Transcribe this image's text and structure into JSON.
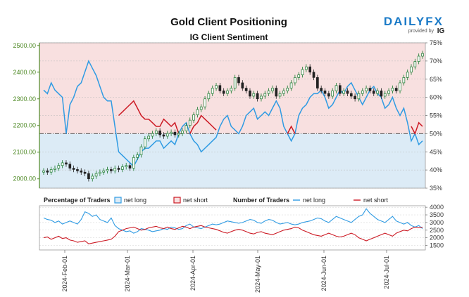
{
  "title": "Gold Client Positioning",
  "subtitle": "IG Client Sentiment",
  "brand": {
    "name": "DAILYFX",
    "provided_by": "provided by",
    "ig": "IG",
    "color": "#1a7ac7",
    "ig_color": "#e21f26"
  },
  "colors": {
    "long": "#2f9be3",
    "short": "#cc1a24",
    "price_axis": "#4f8a26",
    "long_zone": "#dcebf6",
    "short_zone": "#f8e0e0",
    "candle_up": "#1a7a2e",
    "candle_down": "#222222"
  },
  "legend": {
    "pct_title": "Percentage of Traders",
    "pct_long": "net long",
    "pct_short": "net short",
    "num_title": "Number of Traders",
    "num_long": "net long",
    "num_short": "net short"
  },
  "chart_data": [
    {
      "type": "candlestick",
      "title": "Gold Client Positioning",
      "subtitle": "IG Client Sentiment",
      "x_dates": [
        "2024-Feb-01",
        "2024-Mar-01",
        "2024-Apr-01",
        "2024-May-01",
        "2024-Jun-01",
        "2024-Jul-01"
      ],
      "y_left_ticks": [
        "2000.00",
        "2100.00",
        "2200.00",
        "2300.00",
        "2400.00",
        "2500.00"
      ],
      "y_left_range": [
        1965,
        2510
      ],
      "y_right_ticks": [
        "35%",
        "40%",
        "45%",
        "50%",
        "55%",
        "60%",
        "65%",
        "70%",
        "75%"
      ],
      "y_right_range": [
        35,
        75
      ],
      "price_close": [
        2030,
        2025,
        2035,
        2040,
        2050,
        2060,
        2055,
        2040,
        2035,
        2030,
        2025,
        2020,
        2000,
        2010,
        2020,
        2025,
        2030,
        2035,
        2030,
        2040,
        2035,
        2045,
        2050,
        2040,
        2080,
        2090,
        2120,
        2150,
        2160,
        2170,
        2180,
        2165,
        2160,
        2170,
        2175,
        2165,
        2170,
        2180,
        2200,
        2220,
        2240,
        2260,
        2270,
        2300,
        2320,
        2340,
        2350,
        2330,
        2320,
        2330,
        2340,
        2380,
        2360,
        2340,
        2330,
        2310,
        2320,
        2300,
        2310,
        2320,
        2330,
        2340,
        2310,
        2320,
        2330,
        2340,
        2360,
        2380,
        2390,
        2410,
        2420,
        2400,
        2380,
        2340,
        2330,
        2320,
        2310,
        2330,
        2350,
        2320,
        2330,
        2320,
        2310,
        2300,
        2320,
        2330,
        2340,
        2330,
        2320,
        2330,
        2310,
        2320,
        2330,
        2340,
        2330,
        2360,
        2380,
        2400,
        2420,
        2440,
        2460,
        2470
      ],
      "long_pct": [
        62,
        61,
        64,
        62,
        61,
        60,
        50,
        58,
        60,
        63,
        64,
        67,
        70,
        68,
        66,
        63,
        60,
        59,
        59,
        52,
        45,
        44,
        43,
        42,
        41,
        43,
        45,
        46,
        46,
        47,
        48,
        48,
        46,
        47,
        48,
        47,
        50,
        52,
        53,
        50,
        48,
        47,
        45,
        46,
        47,
        48,
        49,
        52,
        54,
        55,
        52,
        51,
        50,
        52,
        55,
        56,
        57,
        54,
        55,
        56,
        55,
        57,
        59,
        57,
        52,
        50,
        48,
        50,
        55,
        57,
        58,
        60,
        61,
        61,
        62,
        60,
        57,
        58,
        60,
        62,
        61,
        63,
        64,
        62,
        60,
        58,
        60,
        62,
        63,
        61,
        60,
        57,
        58,
        60,
        57,
        55,
        57,
        53,
        48,
        50,
        47,
        48
      ],
      "short_pct": [
        38,
        39,
        36,
        38,
        39,
        40,
        50,
        42,
        40,
        37,
        36,
        33,
        30,
        32,
        34,
        37,
        40,
        41,
        41,
        48,
        55,
        56,
        57,
        58,
        59,
        57,
        55,
        54,
        54,
        53,
        52,
        52,
        54,
        53,
        52,
        53,
        50,
        48,
        47,
        50,
        52,
        53,
        55,
        54,
        53,
        52,
        51,
        48,
        46,
        45,
        48,
        49,
        50,
        48,
        45,
        44,
        43,
        46,
        45,
        44,
        45,
        43,
        41,
        43,
        48,
        50,
        52,
        50,
        45,
        43,
        42,
        40,
        39,
        39,
        38,
        40,
        43,
        42,
        40,
        38,
        39,
        37,
        36,
        38,
        40,
        42,
        40,
        38,
        37,
        39,
        40,
        43,
        42,
        40,
        43,
        45,
        43,
        47,
        52,
        50,
        53,
        52
      ]
    },
    {
      "type": "line",
      "title": "Number of Traders",
      "y_right_ticks": [
        "1500",
        "2000",
        "2500",
        "3000",
        "3500",
        "4000"
      ],
      "y_right_range": [
        1200,
        4100
      ],
      "long_count": [
        3300,
        3200,
        3150,
        3000,
        3100,
        2900,
        3000,
        3100,
        3000,
        2900,
        3200,
        3700,
        3600,
        3400,
        3500,
        3200,
        3100,
        3000,
        3300,
        2800,
        2600,
        2500,
        2400,
        2450,
        2300,
        2400,
        2600,
        2550,
        2500,
        2400,
        2450,
        2500,
        2600,
        2550,
        2700,
        2650,
        2550,
        2600,
        2800,
        2900,
        2700,
        2650,
        2600,
        2700,
        2800,
        2900,
        2850,
        2900,
        3000,
        3100,
        3050,
        3000,
        2950,
        3000,
        3100,
        3200,
        3150,
        3000,
        2950,
        3100,
        3200,
        3150,
        3000,
        2900,
        2950,
        3000,
        2900,
        2850,
        2900,
        3000,
        3050,
        3100,
        3200,
        3300,
        3250,
        3100,
        3000,
        3200,
        3400,
        3300,
        3200,
        3100,
        3000,
        3200,
        3400,
        3500,
        3900,
        3600,
        3400,
        3200,
        3100,
        3000,
        3200,
        3400,
        3100,
        3000,
        2900,
        3000,
        2800,
        2700,
        2800,
        2600
      ],
      "short_count": [
        2000,
        2050,
        1900,
        2000,
        2100,
        1950,
        2000,
        1850,
        1800,
        1700,
        1750,
        1800,
        1600,
        1650,
        1700,
        1750,
        1800,
        1850,
        1900,
        2100,
        2400,
        2500,
        2600,
        2650,
        2700,
        2600,
        2500,
        2550,
        2650,
        2700,
        2750,
        2650,
        2600,
        2700,
        2600,
        2550,
        2650,
        2750,
        2700,
        2600,
        2700,
        2750,
        2800,
        2700,
        2650,
        2600,
        2550,
        2450,
        2350,
        2300,
        2400,
        2500,
        2550,
        2500,
        2400,
        2300,
        2250,
        2350,
        2400,
        2300,
        2250,
        2200,
        2300,
        2400,
        2500,
        2550,
        2600,
        2700,
        2650,
        2500,
        2400,
        2300,
        2200,
        2150,
        2100,
        2200,
        2300,
        2200,
        2100,
        2050,
        2100,
        2200,
        2300,
        2200,
        2000,
        1900,
        1800,
        1900,
        2000,
        2100,
        2200,
        2300,
        2200,
        2100,
        2300,
        2400,
        2500,
        2450,
        2600,
        2700,
        2650,
        2700
      ]
    }
  ]
}
